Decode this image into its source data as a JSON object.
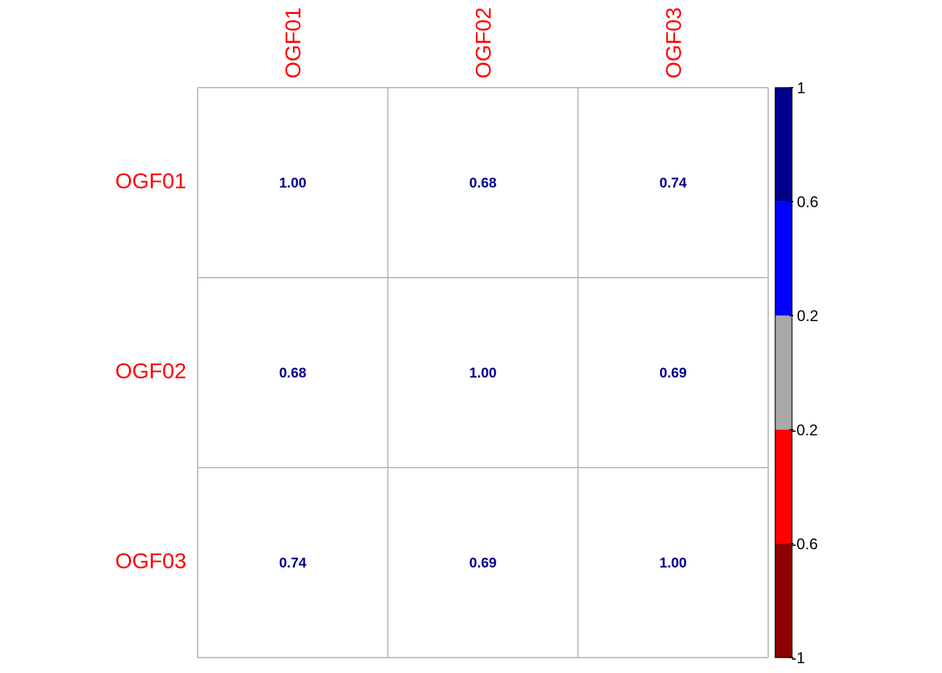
{
  "chart_data": {
    "type": "heatmap",
    "rows": [
      "OGF01",
      "OGF02",
      "OGF03"
    ],
    "columns": [
      "OGF01",
      "OGF02",
      "OGF03"
    ],
    "values": [
      [
        1.0,
        0.68,
        0.74
      ],
      [
        0.68,
        1.0,
        0.69
      ],
      [
        0.74,
        0.69,
        1.0
      ]
    ],
    "value_labels": [
      [
        "1.00",
        "0.68",
        "0.74"
      ],
      [
        "0.68",
        "1.00",
        "0.69"
      ],
      [
        "0.74",
        "0.69",
        "1.00"
      ]
    ],
    "colorbar": {
      "range": [
        -1,
        1
      ],
      "ticks": [
        "1",
        "0.6",
        "0.2",
        "-0.2",
        "-0.6",
        "-1"
      ],
      "bands": [
        {
          "from": 0.6,
          "to": 1.0,
          "color": "#00008b"
        },
        {
          "from": 0.2,
          "to": 0.6,
          "color": "#0000ff"
        },
        {
          "from": -0.2,
          "to": 0.2,
          "color": "#a9a9a9"
        },
        {
          "from": -0.6,
          "to": -0.2,
          "color": "#ff0000"
        },
        {
          "from": -1.0,
          "to": -0.6,
          "color": "#8b0000"
        }
      ]
    },
    "colors": {
      "label": "#ff0000",
      "value_text": "#00008b",
      "grid": "#bebebe",
      "cell_fill": "#ffffff"
    }
  }
}
